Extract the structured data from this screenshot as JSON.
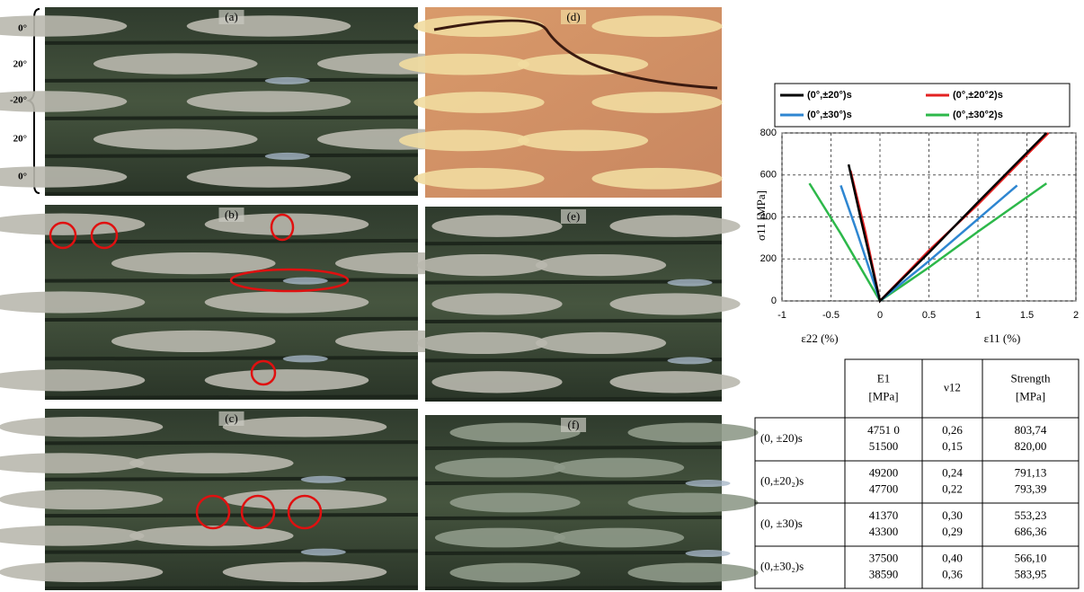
{
  "panels": [
    "(a)",
    "(b)",
    "(c)",
    "(d)",
    "(e)",
    "(f)"
  ],
  "ply_labels": [
    "0°",
    "20°",
    "-20°",
    "20°",
    "0°"
  ],
  "chart_data": {
    "type": "line",
    "y_label": "σ11 [MPa]",
    "x_labels": [
      "ε22 (%)",
      "ε11 (%)"
    ],
    "xlim": [
      -1,
      2
    ],
    "xticks": [
      -1,
      -0.5,
      0,
      0.5,
      1,
      1.5,
      2
    ],
    "ylim": [
      0,
      800
    ],
    "yticks": [
      0,
      200,
      400,
      600,
      800
    ],
    "grid": true,
    "legend": "top",
    "series": [
      {
        "name": "(0°,±20°)s",
        "color": "#000000",
        "x": [
          -0.32,
          -0.2,
          -0.1,
          0,
          0.5,
          1,
          1.7
        ],
        "values": [
          650,
          400,
          200,
          0,
          230,
          470,
          800
        ]
      },
      {
        "name": "(0°,±20°2)s",
        "color": "#e32222",
        "x": [
          -0.3,
          -0.15,
          0,
          0.5,
          1,
          1.72
        ],
        "values": [
          620,
          330,
          0,
          240,
          460,
          800
        ]
      },
      {
        "name": "(0°,±30°)s",
        "color": "#2e86d1",
        "x": [
          -0.4,
          -0.25,
          0,
          0.5,
          1,
          1.4
        ],
        "values": [
          550,
          350,
          0,
          190,
          390,
          550
        ]
      },
      {
        "name": "(0°,±30°2)s",
        "color": "#2db84a",
        "x": [
          -0.72,
          -0.4,
          0,
          0.5,
          1,
          1.7
        ],
        "values": [
          560,
          320,
          0,
          160,
          330,
          560
        ]
      }
    ]
  },
  "table": {
    "columns": [
      [
        "E1",
        "[MPa]"
      ],
      [
        "ν12"
      ],
      [
        "Strength",
        "[MPa]"
      ]
    ],
    "rows": [
      {
        "label": "(0, ±20)s",
        "cells": [
          [
            "4751 0",
            "51500"
          ],
          [
            "0,26",
            "0,15"
          ],
          [
            "803,74",
            "820,00"
          ]
        ]
      },
      {
        "label": "(0,±20₂)s",
        "cells": [
          [
            "49200",
            "47700"
          ],
          [
            "0,24",
            "0,22"
          ],
          [
            "791,13",
            "793,39"
          ]
        ]
      },
      {
        "label": "(0, ±30)s",
        "cells": [
          [
            "41370",
            "43300"
          ],
          [
            "0,30",
            "0,29"
          ],
          [
            "553,23",
            "686,36"
          ]
        ]
      },
      {
        "label": "(0,±30₂)s",
        "cells": [
          [
            "37500",
            "38590"
          ],
          [
            "0,40",
            "0,36"
          ],
          [
            "566,10",
            "583,95"
          ]
        ]
      }
    ]
  }
}
